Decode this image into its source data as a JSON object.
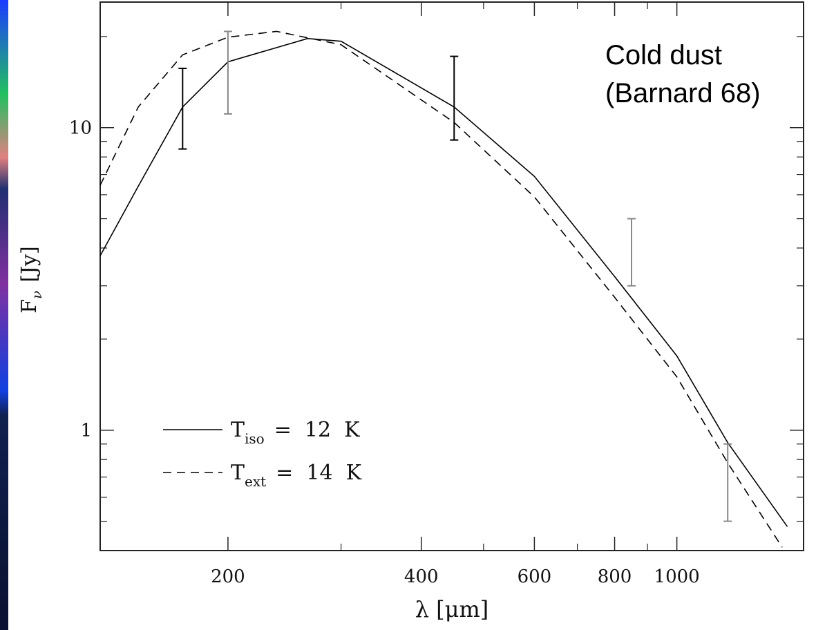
{
  "chart_data": {
    "type": "line",
    "annotation": [
      "Cold dust",
      "(Barnard 68)"
    ],
    "x_label": "λ [μm]",
    "y_label": {
      "base": "F",
      "sub": "ν",
      "suffix": "[Jy]"
    },
    "xlog": true,
    "ylog": true,
    "xlim": [
      126.5,
      1575
    ],
    "ylim": [
      0.4,
      26
    ],
    "xticks": [
      200,
      400,
      600,
      800,
      1000
    ],
    "xminorticks": [
      300,
      500,
      700,
      900
    ],
    "yticks": [
      1,
      10
    ],
    "yminorticks": [
      0.4,
      0.5,
      0.6,
      0.7,
      0.8,
      0.9,
      2,
      3,
      4,
      5,
      6,
      7,
      8,
      9,
      20
    ],
    "series": [
      {
        "name": "T",
        "sub": "iso",
        "suffix": "=  12  K",
        "color": "#000000",
        "dash": false,
        "x": [
          126.5,
          145,
          170,
          200,
          266,
          300,
          450,
          600,
          800,
          1000,
          1200,
          1486
        ],
        "values": [
          3.77,
          6.4,
          11.7,
          16.5,
          19.7,
          19.3,
          11.7,
          6.9,
          3.22,
          1.76,
          0.91,
          0.48
        ]
      },
      {
        "name": "T",
        "sub": "ext",
        "suffix": "=  14  K",
        "color": "#000000",
        "dash": true,
        "x": [
          126.5,
          145,
          170,
          200,
          238,
          300,
          450,
          600,
          800,
          1000,
          1200,
          1459
        ],
        "values": [
          6.45,
          11.7,
          17.4,
          19.9,
          20.8,
          18.8,
          10.4,
          5.9,
          2.75,
          1.5,
          0.78,
          0.41
        ]
      }
    ],
    "errorbars": {
      "x": [
        170,
        200,
        450,
        850,
        1200
      ],
      "low": [
        8.5,
        11.1,
        9.1,
        3.0,
        0.5
      ],
      "high": [
        15.7,
        20.8,
        17.2,
        5.0,
        0.9
      ],
      "colors": [
        "#000000",
        "#888888",
        "#000000",
        "#888888",
        "#888888"
      ]
    }
  }
}
